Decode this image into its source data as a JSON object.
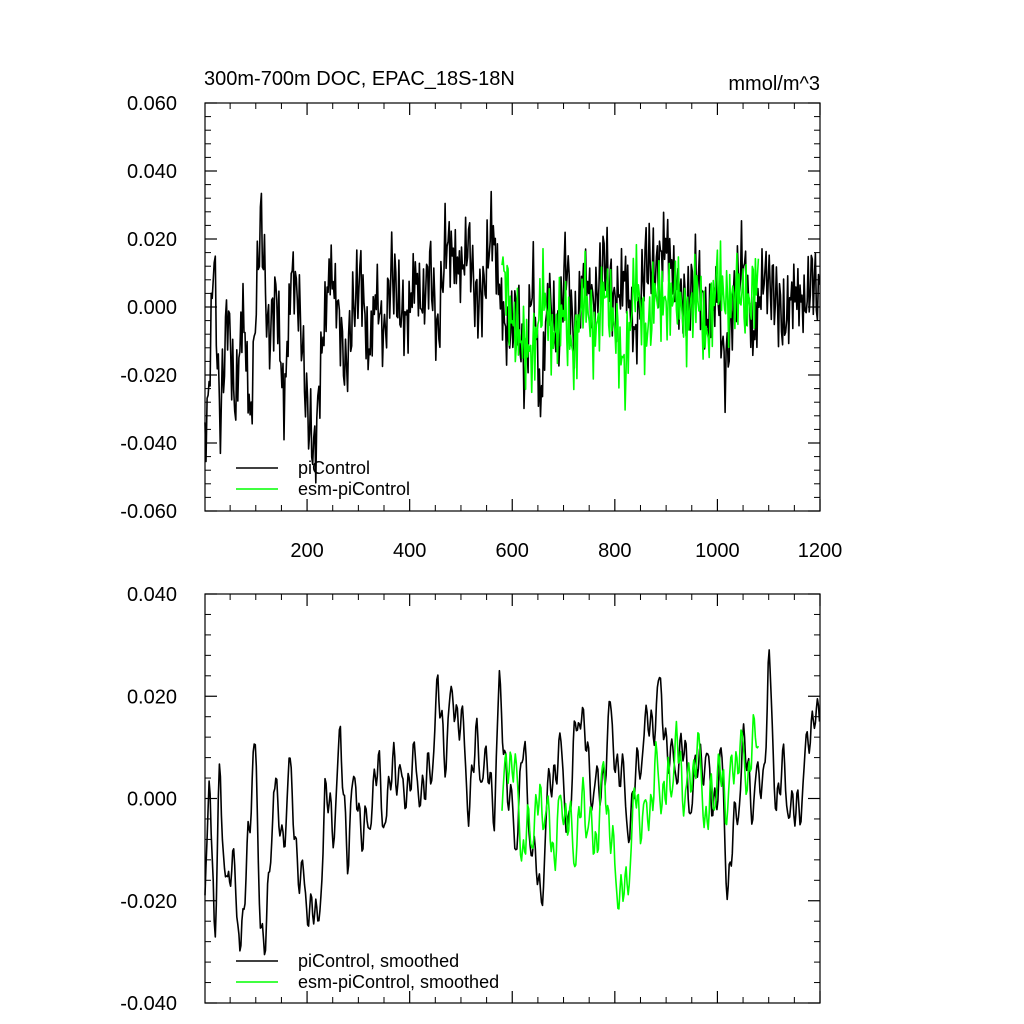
{
  "figure": {
    "title_left": "300m-700m DOC, EPAC_18S-18N",
    "title_right": "mmol/m^3"
  },
  "chart_data": [
    {
      "type": "line",
      "x_tick_labels": [
        "200",
        "400",
        "600",
        "800",
        "1000",
        "1200"
      ],
      "y_tick_labels": [
        "0.060",
        "0.040",
        "0.020",
        "0.000",
        "-0.020",
        "-0.040",
        "-0.060"
      ],
      "xlim": [
        1,
        1200
      ],
      "ylim": [
        -0.06,
        0.06
      ],
      "grid": false,
      "legend_position": "bottom-left",
      "series": [
        {
          "name": "piControl",
          "color": "#000000",
          "x_start": 1,
          "x_end": 1200,
          "anchors": [
            [
              1,
              -0.041
            ],
            [
              10,
              -0.02
            ],
            [
              18,
              0.018
            ],
            [
              30,
              -0.035
            ],
            [
              45,
              0.0
            ],
            [
              60,
              -0.03
            ],
            [
              75,
              0.0
            ],
            [
              90,
              -0.035
            ],
            [
              100,
              0.0
            ],
            [
              110,
              0.028
            ],
            [
              125,
              -0.01
            ],
            [
              140,
              0.005
            ],
            [
              155,
              -0.03
            ],
            [
              170,
              0.012
            ],
            [
              185,
              0.0
            ],
            [
              200,
              -0.03
            ],
            [
              215,
              -0.044
            ],
            [
              230,
              -0.01
            ],
            [
              245,
              0.012
            ],
            [
              260,
              0.0
            ],
            [
              275,
              -0.02
            ],
            [
              290,
              0.0
            ],
            [
              305,
              0.01
            ],
            [
              320,
              -0.015
            ],
            [
              335,
              0.005
            ],
            [
              350,
              -0.01
            ],
            [
              365,
              0.012
            ],
            [
              380,
              0.0
            ],
            [
              395,
              -0.005
            ],
            [
              410,
              0.01
            ],
            [
              425,
              0.0
            ],
            [
              440,
              0.013
            ],
            [
              455,
              -0.01
            ],
            [
              470,
              0.02
            ],
            [
              485,
              0.015
            ],
            [
              500,
              0.01
            ],
            [
              515,
              0.02
            ],
            [
              530,
              0.0
            ],
            [
              545,
              0.005
            ],
            [
              560,
              0.025
            ],
            [
              575,
              0.005
            ],
            [
              590,
              -0.01
            ],
            [
              610,
              0.0
            ],
            [
              625,
              -0.02
            ],
            [
              640,
              0.01
            ],
            [
              655,
              -0.03
            ],
            [
              670,
              0.005
            ],
            [
              690,
              -0.01
            ],
            [
              705,
              0.015
            ],
            [
              720,
              -0.01
            ],
            [
              740,
              0.01
            ],
            [
              760,
              0.0
            ],
            [
              780,
              0.015
            ],
            [
              800,
              0.0
            ],
            [
              820,
              0.01
            ],
            [
              840,
              -0.01
            ],
            [
              860,
              0.015
            ],
            [
              880,
              0.01
            ],
            [
              900,
              0.02
            ],
            [
              920,
              0.005
            ],
            [
              940,
              0.0
            ],
            [
              960,
              0.01
            ],
            [
              980,
              -0.005
            ],
            [
              1000,
              0.005
            ],
            [
              1015,
              -0.02
            ],
            [
              1030,
              0.0
            ],
            [
              1050,
              0.015
            ],
            [
              1070,
              -0.01
            ],
            [
              1090,
              0.01
            ],
            [
              1110,
              0.005
            ],
            [
              1130,
              -0.005
            ],
            [
              1150,
              0.005
            ],
            [
              1170,
              0.0
            ],
            [
              1185,
              0.01
            ],
            [
              1200,
              0.0
            ]
          ],
          "noise_amplitude": 0.016,
          "noise_period": 2.3
        },
        {
          "name": "esm-piControl",
          "color": "#00ff00",
          "x_start": 580,
          "x_end": 1080,
          "anchors": [
            [
              580,
              0.015
            ],
            [
              600,
              -0.005
            ],
            [
              620,
              -0.01
            ],
            [
              640,
              -0.015
            ],
            [
              660,
              0.005
            ],
            [
              680,
              -0.01
            ],
            [
              700,
              0.0
            ],
            [
              720,
              -0.015
            ],
            [
              740,
              0.005
            ],
            [
              760,
              -0.01
            ],
            [
              780,
              0.005
            ],
            [
              800,
              -0.005
            ],
            [
              820,
              -0.02
            ],
            [
              840,
              0.01
            ],
            [
              860,
              -0.01
            ],
            [
              880,
              0.005
            ],
            [
              900,
              0.0
            ],
            [
              920,
              0.005
            ],
            [
              940,
              -0.005
            ],
            [
              960,
              0.005
            ],
            [
              980,
              -0.01
            ],
            [
              1000,
              0.01
            ],
            [
              1020,
              0.0
            ],
            [
              1040,
              0.005
            ],
            [
              1060,
              0.0
            ],
            [
              1080,
              0.01
            ]
          ],
          "noise_amplitude": 0.016,
          "noise_period": 2.1
        }
      ]
    },
    {
      "type": "line",
      "x_tick_labels": [
        "200",
        "400",
        "600",
        "800",
        "1000",
        "1200"
      ],
      "y_tick_labels": [
        "0.040",
        "0.020",
        "0.000",
        "-0.020",
        "-0.040"
      ],
      "xlim": [
        1,
        1200
      ],
      "ylim": [
        -0.04,
        0.04
      ],
      "grid": false,
      "legend_position": "bottom-left",
      "series": [
        {
          "name": "piControl, smoothed",
          "color": "#000000",
          "x_start": 1,
          "x_end": 1200,
          "anchors": [
            [
              1,
              -0.025
            ],
            [
              10,
              0.01
            ],
            [
              20,
              -0.03
            ],
            [
              30,
              0.005
            ],
            [
              45,
              -0.02
            ],
            [
              60,
              -0.01
            ],
            [
              70,
              -0.035
            ],
            [
              85,
              -0.005
            ],
            [
              100,
              0.008
            ],
            [
              110,
              -0.025
            ],
            [
              120,
              -0.03
            ],
            [
              135,
              0.005
            ],
            [
              150,
              -0.01
            ],
            [
              165,
              0.005
            ],
            [
              180,
              -0.01
            ],
            [
              195,
              -0.02
            ],
            [
              210,
              -0.02
            ],
            [
              220,
              -0.028
            ],
            [
              235,
              0.0
            ],
            [
              250,
              -0.005
            ],
            [
              265,
              0.01
            ],
            [
              280,
              -0.01
            ],
            [
              295,
              0.005
            ],
            [
              310,
              -0.01
            ],
            [
              325,
              0.0
            ],
            [
              340,
              0.005
            ],
            [
              355,
              -0.005
            ],
            [
              370,
              0.01
            ],
            [
              385,
              0.0
            ],
            [
              400,
              0.005
            ],
            [
              415,
              0.005
            ],
            [
              430,
              0.0
            ],
            [
              445,
              0.01
            ],
            [
              455,
              0.02
            ],
            [
              470,
              0.01
            ],
            [
              485,
              0.02
            ],
            [
              500,
              0.015
            ],
            [
              515,
              0.0
            ],
            [
              530,
              0.01
            ],
            [
              550,
              0.005
            ],
            [
              565,
              0.0
            ],
            [
              575,
              0.02
            ],
            [
              590,
              0.005
            ],
            [
              605,
              -0.01
            ],
            [
              620,
              0.01
            ],
            [
              640,
              -0.01
            ],
            [
              655,
              -0.02
            ],
            [
              670,
              0.0
            ],
            [
              690,
              0.01
            ],
            [
              710,
              -0.005
            ],
            [
              730,
              0.02
            ],
            [
              750,
              0.005
            ],
            [
              770,
              0.0
            ],
            [
              790,
              0.015
            ],
            [
              810,
              0.005
            ],
            [
              830,
              -0.005
            ],
            [
              850,
              0.01
            ],
            [
              870,
              0.015
            ],
            [
              890,
              0.02
            ],
            [
              910,
              0.005
            ],
            [
              930,
              0.01
            ],
            [
              950,
              0.0
            ],
            [
              970,
              0.01
            ],
            [
              990,
              0.0
            ],
            [
              1010,
              0.005
            ],
            [
              1020,
              -0.018
            ],
            [
              1035,
              -0.005
            ],
            [
              1050,
              0.01
            ],
            [
              1070,
              0.0
            ],
            [
              1090,
              0.005
            ],
            [
              1100,
              0.025
            ],
            [
              1115,
              0.0
            ],
            [
              1130,
              0.005
            ],
            [
              1150,
              -0.005
            ],
            [
              1170,
              0.005
            ],
            [
              1190,
              0.02
            ],
            [
              1200,
              0.01
            ]
          ],
          "noise_amplitude": 0.008,
          "noise_period": 8
        },
        {
          "name": "esm-piControl, smoothed",
          "color": "#00ff00",
          "x_start": 580,
          "x_end": 1080,
          "anchors": [
            [
              580,
              0.0
            ],
            [
              600,
              0.01
            ],
            [
              620,
              -0.01
            ],
            [
              640,
              -0.005
            ],
            [
              660,
              0.0
            ],
            [
              680,
              -0.01
            ],
            [
              700,
              0.0
            ],
            [
              720,
              -0.01
            ],
            [
              740,
              0.0
            ],
            [
              760,
              -0.01
            ],
            [
              780,
              0.005
            ],
            [
              800,
              -0.015
            ],
            [
              820,
              -0.02
            ],
            [
              840,
              0.0
            ],
            [
              860,
              -0.005
            ],
            [
              880,
              0.005
            ],
            [
              900,
              0.0
            ],
            [
              920,
              0.01
            ],
            [
              940,
              0.0
            ],
            [
              960,
              0.01
            ],
            [
              980,
              -0.005
            ],
            [
              1000,
              0.005
            ],
            [
              1020,
              0.0
            ],
            [
              1040,
              0.01
            ],
            [
              1060,
              0.005
            ],
            [
              1080,
              0.015
            ]
          ],
          "noise_amplitude": 0.008,
          "noise_period": 7
        }
      ]
    }
  ]
}
